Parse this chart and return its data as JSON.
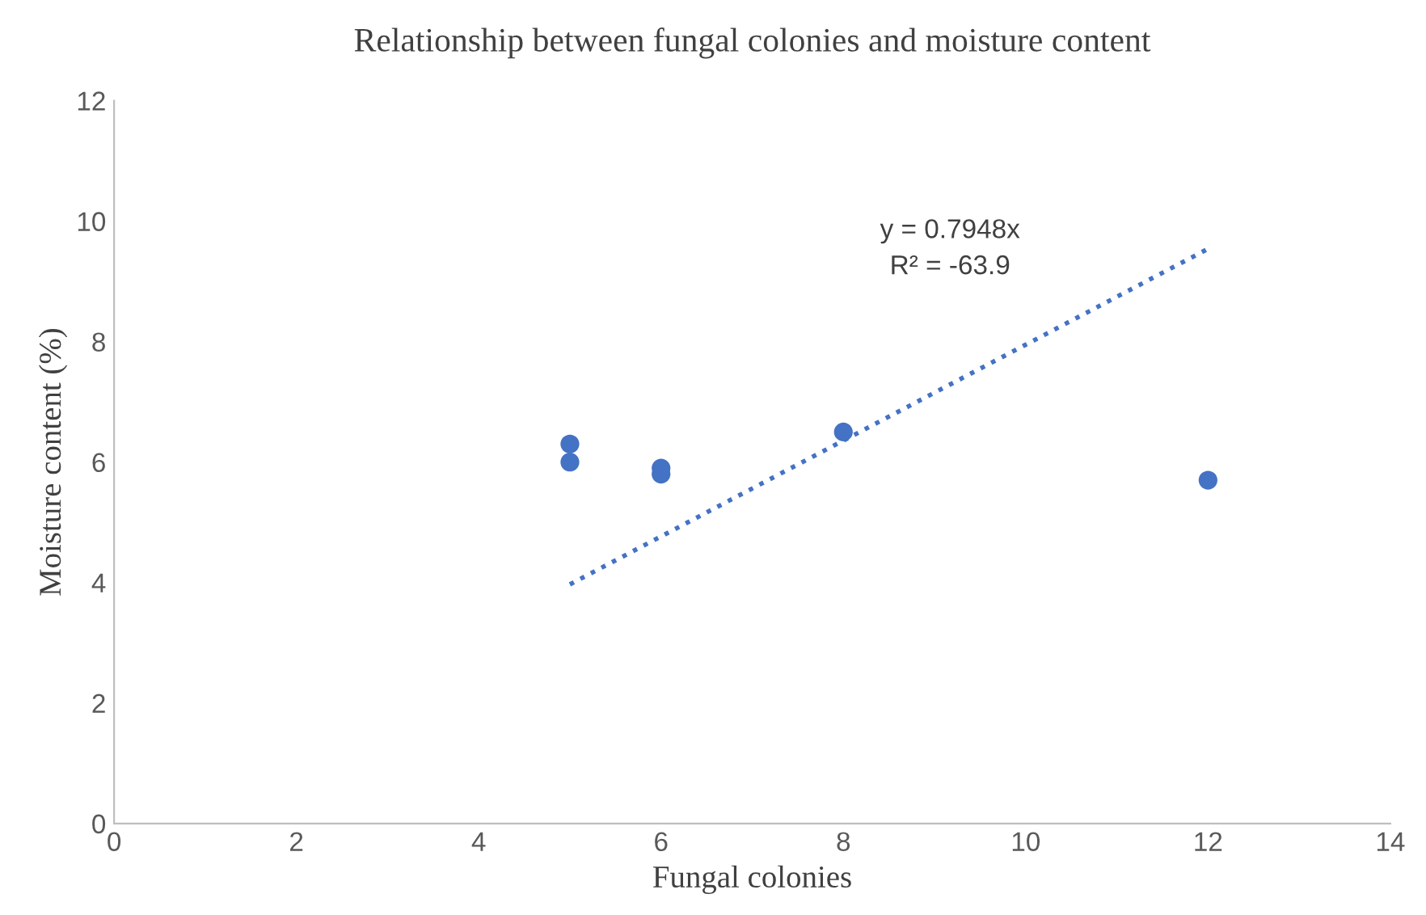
{
  "chart_data": {
    "type": "scatter",
    "title": "Relationship between fungal colonies and moisture content",
    "xlabel": "Fungal colonies",
    "ylabel": "Moisture content (%)",
    "x": [
      5,
      5,
      6,
      6,
      8,
      12
    ],
    "series": [
      {
        "color": "#4472c4",
        "values": [
          6.3,
          6.0,
          5.9,
          5.8,
          6.5,
          5.7
        ],
        "marker": "circle"
      },
      {
        "type": "line",
        "color": "#4472c4",
        "x": [
          5,
          12
        ],
        "values": [
          3.97,
          9.54
        ],
        "line_style": "dotted",
        "marker": "none"
      }
    ],
    "annotations": [
      "y = 0.7948x",
      "R² = -63.9"
    ],
    "xlim": [
      0,
      14
    ],
    "xticks": [
      0,
      2,
      4,
      6,
      8,
      10,
      12,
      14
    ],
    "ylim": [
      0,
      12
    ],
    "yticks": [
      0,
      2,
      4,
      6,
      8,
      10,
      12
    ],
    "grid": false,
    "legend": false
  }
}
